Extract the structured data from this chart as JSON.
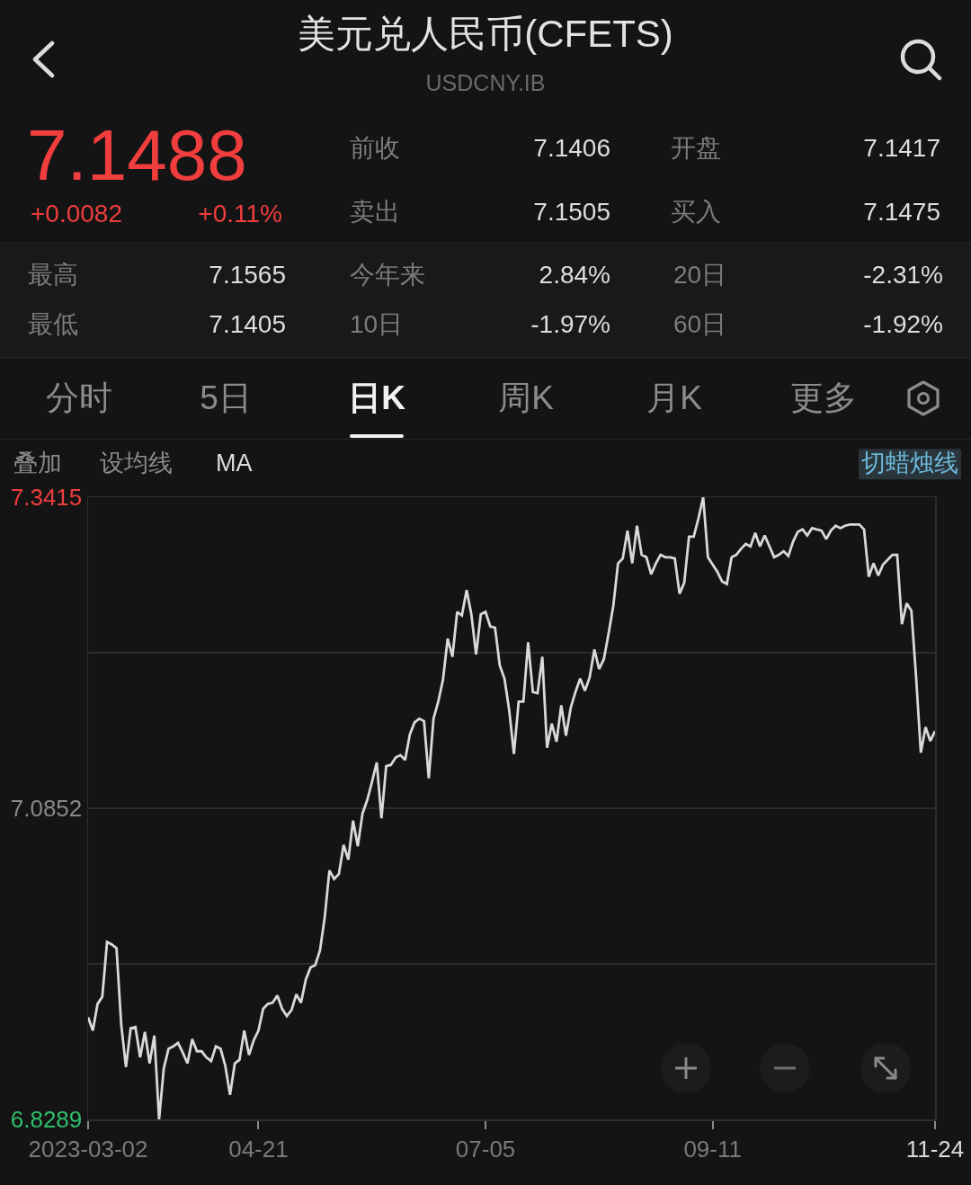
{
  "chart_data": {
    "type": "line",
    "title": "美元兑人民币(CFETS)",
    "subtitle": "USDCNY.IB",
    "categories": [
      "2023-03-02",
      null,
      null,
      null,
      null,
      null,
      null,
      null,
      null,
      null,
      null,
      null,
      null,
      null,
      null,
      null,
      null,
      null,
      null,
      null,
      null,
      null,
      null,
      null,
      null,
      null,
      null,
      null,
      null,
      null,
      null,
      null,
      null,
      null,
      null,
      null,
      "04-21",
      null,
      null,
      null,
      null,
      null,
      null,
      null,
      null,
      null,
      null,
      null,
      null,
      null,
      null,
      null,
      null,
      null,
      null,
      null,
      null,
      null,
      null,
      null,
      null,
      null,
      null,
      null,
      null,
      null,
      null,
      null,
      null,
      null,
      null,
      null,
      null,
      null,
      null,
      null,
      null,
      null,
      null,
      null,
      null,
      null,
      null,
      null,
      "07-05",
      null,
      null,
      null,
      null,
      null,
      null,
      null,
      null,
      null,
      null,
      null,
      null,
      null,
      null,
      null,
      null,
      null,
      null,
      null,
      null,
      null,
      null,
      null,
      null,
      null,
      null,
      null,
      null,
      null,
      null,
      null,
      null,
      null,
      null,
      null,
      null,
      null,
      null,
      null,
      null,
      null,
      null,
      null,
      null,
      null,
      null,
      null,
      "09-11",
      null,
      null,
      null,
      null,
      null,
      null,
      null,
      null,
      null,
      null,
      null,
      null,
      null,
      null,
      null,
      null,
      null,
      null,
      null,
      null,
      null,
      null,
      null,
      null,
      null,
      null,
      null,
      null,
      null,
      null,
      null,
      null,
      null,
      null,
      null,
      null,
      null,
      null,
      null,
      null,
      null,
      null,
      null,
      null,
      null,
      null,
      "11-24"
    ],
    "series": [
      {
        "color": "#d9d9d9",
        "values": [
          6.913,
          6.902,
          6.924,
          6.93,
          6.975,
          6.973,
          6.97,
          6.907,
          6.872,
          6.904,
          6.905,
          6.88,
          6.901,
          6.875,
          6.898,
          6.8289,
          6.871,
          6.887,
          6.889,
          6.892,
          6.884,
          6.875,
          6.895,
          6.885,
          6.885,
          6.88,
          6.877,
          6.889,
          6.887,
          6.873,
          6.849,
          6.875,
          6.878,
          6.902,
          6.882,
          6.894,
          6.902,
          6.92,
          6.924,
          6.925,
          6.931,
          6.92,
          6.914,
          6.919,
          6.932,
          6.925,
          6.944,
          6.954,
          6.956,
          6.968,
          6.995,
          7.034,
          7.027,
          7.031,
          7.055,
          7.043,
          7.075,
          7.054,
          7.081,
          7.092,
          7.107,
          7.123,
          7.077,
          7.12,
          7.121,
          7.127,
          7.129,
          7.125,
          7.146,
          7.156,
          7.159,
          7.157,
          7.11,
          7.159,
          7.173,
          7.191,
          7.225,
          7.21,
          7.247,
          7.244,
          7.265,
          7.245,
          7.212,
          7.245,
          7.247,
          7.235,
          7.234,
          7.203,
          7.192,
          7.166,
          7.13,
          7.173,
          7.173,
          7.222,
          7.181,
          7.18,
          7.21,
          7.135,
          7.155,
          7.14,
          7.17,
          7.145,
          7.168,
          7.181,
          7.192,
          7.182,
          7.193,
          7.216,
          7.2,
          7.208,
          7.229,
          7.252,
          7.287,
          7.291,
          7.314,
          7.287,
          7.318,
          7.294,
          7.292,
          7.278,
          7.287,
          7.294,
          7.292,
          7.292,
          7.291,
          7.262,
          7.271,
          7.309,
          7.309,
          7.324,
          7.3415,
          7.292,
          7.286,
          7.28,
          7.272,
          7.27,
          7.292,
          7.294,
          7.299,
          7.303,
          7.301,
          7.312,
          7.301,
          7.31,
          7.301,
          7.292,
          7.294,
          7.297,
          7.293,
          7.305,
          7.313,
          7.315,
          7.31,
          7.316,
          7.315,
          7.314,
          7.307,
          7.314,
          7.318,
          7.316,
          7.318,
          7.319,
          7.319,
          7.319,
          7.315,
          7.276,
          7.287,
          7.277,
          7.286,
          7.29,
          7.294,
          7.294,
          7.237,
          7.254,
          7.248,
          7.193,
          7.131,
          7.152,
          7.1406,
          7.1488
        ]
      }
    ],
    "ylim": [
      6.8289,
      7.3415
    ],
    "yticks": [
      7.3415,
      {
        "value": 7.21335,
        "label": null
      },
      7.0852,
      {
        "value": 6.95705,
        "label": null
      },
      6.8289
    ],
    "grid": "y",
    "annotations": [
      "7.1488",
      "+0.0082",
      "+0.11%",
      "前收",
      "7.1406",
      "开盘",
      "7.1417",
      "卖出",
      "7.1505",
      "买入",
      "7.1475",
      "最高",
      "7.1565",
      "今年来",
      "2.84%",
      "20日",
      "-2.31%",
      "最低",
      "7.1405",
      "10日",
      "-1.97%",
      "60日",
      "-1.92%",
      "分时",
      "5日",
      "日K",
      "周K",
      "月K",
      "更多",
      "叠加",
      "设均线",
      "MA",
      "切蜡烛线"
    ]
  }
}
